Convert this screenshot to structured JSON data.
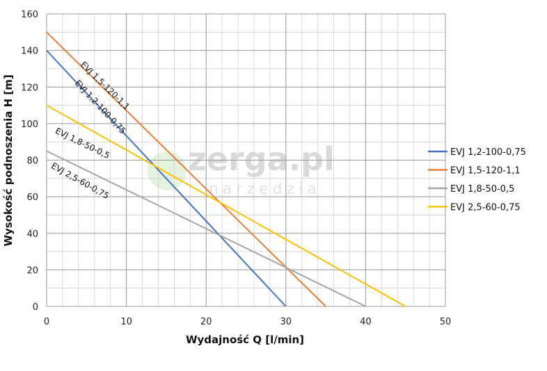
{
  "chart_data": {
    "type": "line",
    "xlabel": "Wydajność Q [l/min]",
    "ylabel": "Wysokość podnoszenia H [m]",
    "xlim": [
      0,
      50
    ],
    "ylim": [
      0,
      160
    ],
    "x_ticks": [
      0,
      10,
      20,
      30,
      40,
      50
    ],
    "y_ticks": [
      0,
      20,
      40,
      60,
      80,
      100,
      120,
      140,
      160
    ],
    "minor_x_step": 2,
    "minor_y_step": 10,
    "grid": true,
    "legend_position": "right",
    "series": [
      {
        "name": "EVJ 1,2-100-0,75",
        "color": "#4472c4",
        "points": [
          [
            0,
            140
          ],
          [
            30,
            0
          ]
        ],
        "line_label": "EVJ 1,2-100-0,75"
      },
      {
        "name": "EVJ 1,5-120-1,1",
        "color": "#ed7d31",
        "points": [
          [
            0,
            150
          ],
          [
            35,
            0
          ]
        ],
        "line_label": "EVJ 1,5-120-1,1"
      },
      {
        "name": "EVJ 1,8-50-0,5",
        "color": "#a5a5a5",
        "points": [
          [
            0,
            85
          ],
          [
            40,
            0
          ]
        ],
        "line_label": "EVJ 1,8-50-0,5"
      },
      {
        "name": "EVJ 2,5-60-0,75",
        "color": "#ffc000",
        "points": [
          [
            0,
            110
          ],
          [
            45,
            0
          ]
        ],
        "line_label": "EVJ 2,5-60-0,75"
      }
    ]
  },
  "watermark": {
    "main": "zerga.pl",
    "sub": "narzędzia"
  }
}
